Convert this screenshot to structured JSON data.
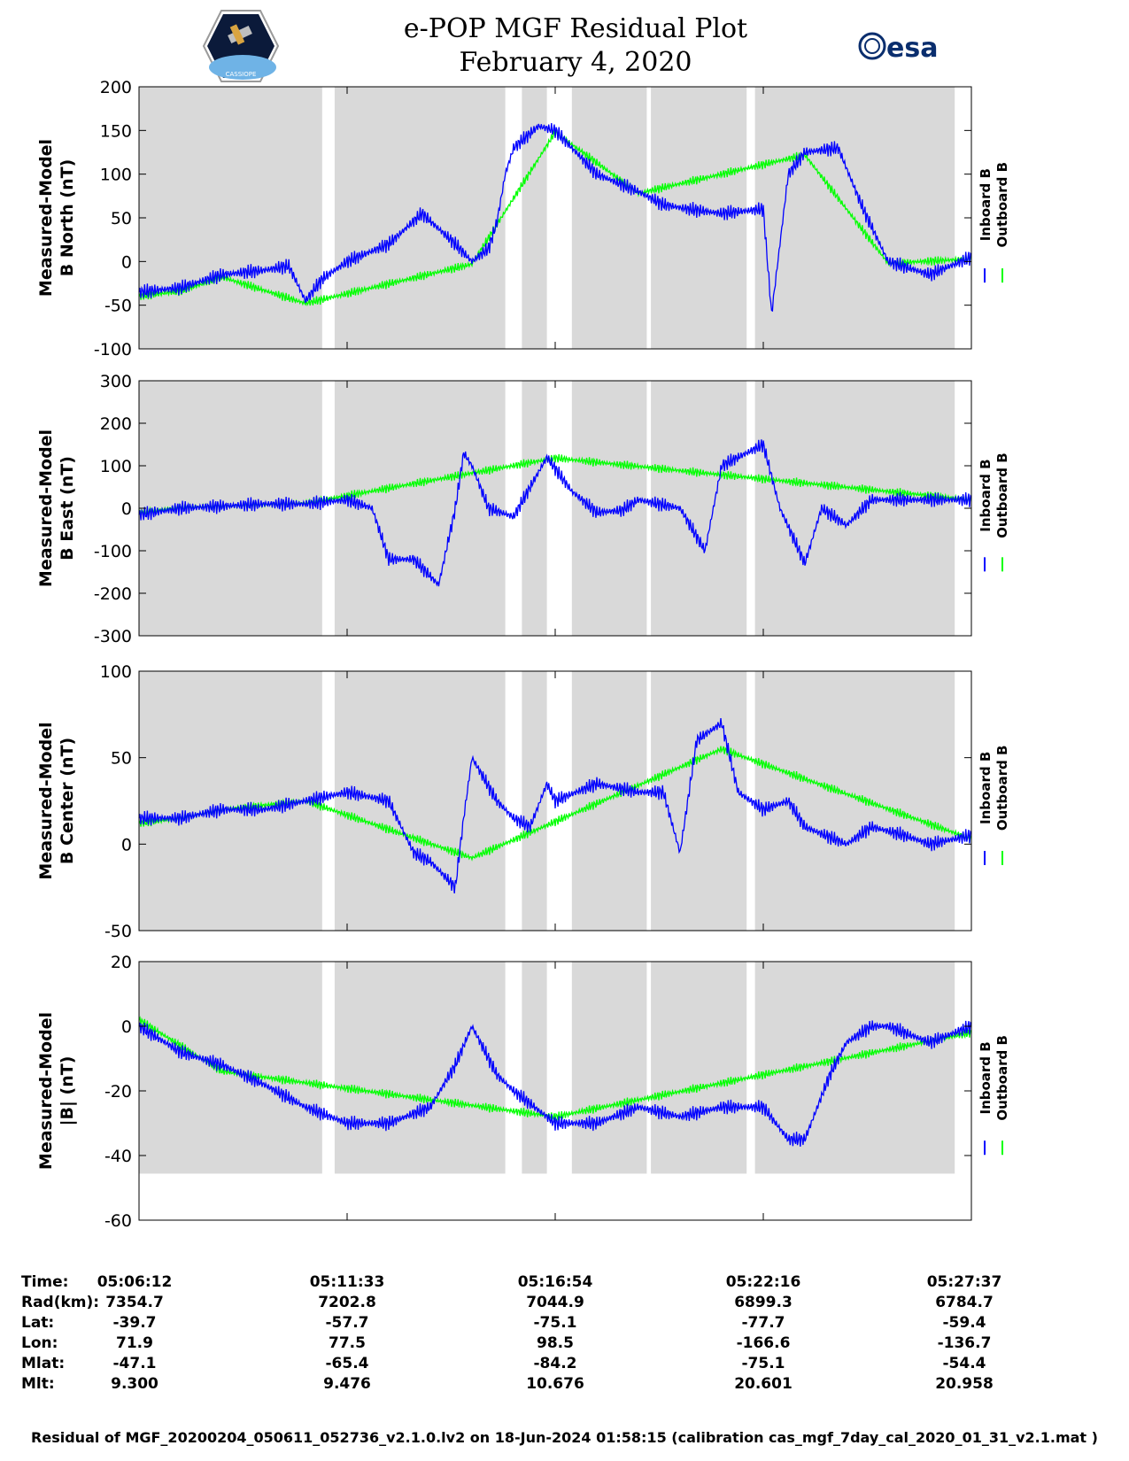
{
  "header": {
    "title_line1": "e-POP MGF Residual Plot",
    "title_line2": "February 4, 2020",
    "mission_logo_text": "CASSIOPE",
    "esa_logo_text": "esa"
  },
  "legend": {
    "inboard": "Inboard B",
    "outboard": "Outboard B"
  },
  "colors": {
    "inboard": "#0000ff",
    "outboard": "#00ff00",
    "shade": "#d9d9d9"
  },
  "chart_data": [
    {
      "type": "line",
      "ylabel_line1": "Measured-Model",
      "ylabel_line2": "B North (nT)",
      "ylim": [
        -100,
        200
      ],
      "yticks": [
        -100,
        -50,
        0,
        50,
        100,
        150,
        200
      ],
      "xlim": [
        0,
        1.0
      ],
      "series": [
        {
          "name": "Inboard B",
          "x": [
            0,
            0.05,
            0.1,
            0.15,
            0.18,
            0.2,
            0.22,
            0.25,
            0.3,
            0.34,
            0.38,
            0.4,
            0.42,
            0.43,
            0.44,
            0.45,
            0.48,
            0.5,
            0.55,
            0.6,
            0.63,
            0.66,
            0.7,
            0.75,
            0.76,
            0.78,
            0.8,
            0.84,
            0.87,
            0.9,
            0.95,
            1.0
          ],
          "y": [
            -35,
            -30,
            -15,
            -10,
            -5,
            -45,
            -20,
            0,
            20,
            55,
            20,
            0,
            15,
            45,
            100,
            130,
            155,
            150,
            100,
            80,
            65,
            60,
            55,
            60,
            -60,
            100,
            125,
            130,
            60,
            0,
            -15,
            5
          ]
        },
        {
          "name": "Outboard B",
          "x": [
            0,
            0.05,
            0.1,
            0.2,
            0.4,
            0.5,
            0.6,
            0.8,
            0.9,
            1.0
          ],
          "y": [
            -40,
            -34,
            -18,
            -48,
            -3,
            148,
            78,
            122,
            -2,
            3
          ]
        }
      ],
      "shaded_regions": [
        [
          0,
          0.22
        ],
        [
          0.235,
          0.44
        ],
        [
          0.46,
          0.49
        ],
        [
          0.52,
          0.61
        ],
        [
          0.615,
          0.73
        ],
        [
          0.74,
          0.98
        ]
      ]
    },
    {
      "type": "line",
      "ylabel_line1": "Measured-Model",
      "ylabel_line2": "B East (nT)",
      "ylim": [
        -300,
        300
      ],
      "yticks": [
        -300,
        -200,
        -100,
        0,
        100,
        200,
        300
      ],
      "xlim": [
        0,
        1.0
      ],
      "series": [
        {
          "name": "Inboard B",
          "x": [
            0,
            0.05,
            0.1,
            0.15,
            0.2,
            0.25,
            0.28,
            0.3,
            0.33,
            0.36,
            0.38,
            0.39,
            0.4,
            0.42,
            0.45,
            0.49,
            0.52,
            0.55,
            0.58,
            0.6,
            0.65,
            0.68,
            0.7,
            0.75,
            0.77,
            0.8,
            0.82,
            0.85,
            0.88,
            0.92,
            0.95,
            1.0
          ],
          "y": [
            -15,
            0,
            5,
            10,
            10,
            20,
            0,
            -120,
            -120,
            -180,
            0,
            130,
            100,
            0,
            -20,
            120,
            40,
            -10,
            -5,
            20,
            0,
            -100,
            100,
            150,
            0,
            -130,
            0,
            -40,
            20,
            20,
            20,
            20
          ]
        },
        {
          "name": "Outboard B",
          "x": [
            0,
            0.05,
            0.1,
            0.2,
            0.5,
            1.0
          ],
          "y": [
            -10,
            2,
            5,
            12,
            118,
            20
          ]
        }
      ],
      "shaded_regions": [
        [
          0,
          0.22
        ],
        [
          0.235,
          0.44
        ],
        [
          0.46,
          0.49
        ],
        [
          0.52,
          0.61
        ],
        [
          0.615,
          0.73
        ],
        [
          0.74,
          0.98
        ]
      ]
    },
    {
      "type": "line",
      "ylabel_line1": "Measured-Model",
      "ylabel_line2": "B Center (nT)",
      "ylim": [
        -50,
        100
      ],
      "yticks": [
        -50,
        0,
        50,
        100
      ],
      "xlim": [
        0,
        1.0
      ],
      "series": [
        {
          "name": "Inboard B",
          "x": [
            0,
            0.05,
            0.1,
            0.15,
            0.2,
            0.25,
            0.3,
            0.33,
            0.35,
            0.38,
            0.39,
            0.4,
            0.43,
            0.45,
            0.47,
            0.49,
            0.5,
            0.55,
            0.6,
            0.63,
            0.65,
            0.67,
            0.7,
            0.72,
            0.75,
            0.78,
            0.8,
            0.85,
            0.88,
            0.92,
            0.95,
            1.0
          ],
          "y": [
            15,
            15,
            20,
            20,
            25,
            30,
            25,
            -5,
            -10,
            -25,
            15,
            50,
            25,
            15,
            10,
            35,
            25,
            35,
            30,
            30,
            -5,
            60,
            70,
            30,
            20,
            25,
            10,
            0,
            10,
            5,
            0,
            5
          ]
        },
        {
          "name": "Outboard B",
          "x": [
            0,
            0.05,
            0.1,
            0.2,
            0.4,
            0.7,
            1.0
          ],
          "y": [
            12,
            15,
            20,
            25,
            -8,
            55,
            3
          ]
        }
      ],
      "shaded_regions": [
        [
          0,
          0.22
        ],
        [
          0.235,
          0.44
        ],
        [
          0.46,
          0.49
        ],
        [
          0.52,
          0.61
        ],
        [
          0.615,
          0.73
        ],
        [
          0.74,
          0.98
        ]
      ]
    },
    {
      "type": "line",
      "ylabel_line1": "Measured-Model",
      "ylabel_line2": "|B| (nT)",
      "ylim": [
        -60,
        20
      ],
      "yticks": [
        -60,
        -40,
        -20,
        0,
        20
      ],
      "xlim": [
        0,
        1.0
      ],
      "series": [
        {
          "name": "Inboard B",
          "x": [
            0,
            0.05,
            0.1,
            0.15,
            0.2,
            0.25,
            0.3,
            0.35,
            0.38,
            0.4,
            0.43,
            0.45,
            0.5,
            0.55,
            0.6,
            0.65,
            0.7,
            0.75,
            0.78,
            0.8,
            0.83,
            0.85,
            0.88,
            0.9,
            0.95,
            1.0
          ],
          "y": [
            0,
            -8,
            -12,
            -18,
            -25,
            -30,
            -30,
            -25,
            -12,
            0,
            -15,
            -20,
            -30,
            -30,
            -25,
            -28,
            -25,
            -25,
            -35,
            -35,
            -15,
            -5,
            0,
            0,
            -5,
            0
          ]
        },
        {
          "name": "Outboard B",
          "x": [
            0,
            0.05,
            0.1,
            0.5,
            1.0
          ],
          "y": [
            2,
            -6,
            -14,
            -28,
            -2
          ]
        }
      ],
      "shaded_regions": [
        [
          0,
          0.22
        ],
        [
          0.235,
          0.44
        ],
        [
          0.46,
          0.49
        ],
        [
          0.52,
          0.61
        ],
        [
          0.615,
          0.73
        ],
        [
          0.74,
          0.98
        ]
      ]
    }
  ],
  "ephemeris": {
    "labels": [
      "Time:",
      "Rad(km):",
      "Lat:",
      "Lon:",
      "Mlat:",
      "Mlt:"
    ],
    "columns": [
      [
        "05:06:12",
        "7354.7",
        "-39.7",
        "71.9",
        "-47.1",
        "9.300"
      ],
      [
        "05:11:33",
        "7202.8",
        "-57.7",
        "77.5",
        "-65.4",
        "9.476"
      ],
      [
        "05:16:54",
        "7044.9",
        "-75.1",
        "98.5",
        "-84.2",
        "10.676"
      ],
      [
        "05:22:16",
        "6899.3",
        "-77.7",
        "-166.6",
        "-75.1",
        "20.601"
      ],
      [
        "05:27:37",
        "6784.7",
        "-59.4",
        "-136.7",
        "-54.4",
        "20.958"
      ]
    ]
  },
  "footer": "Residual of MGF_20200204_050611_052736_v2.1.0.lv2 on 18-Jun-2024 01:58:15 (calibration cas_mgf_7day_cal_2020_01_31_v2.1.mat )"
}
